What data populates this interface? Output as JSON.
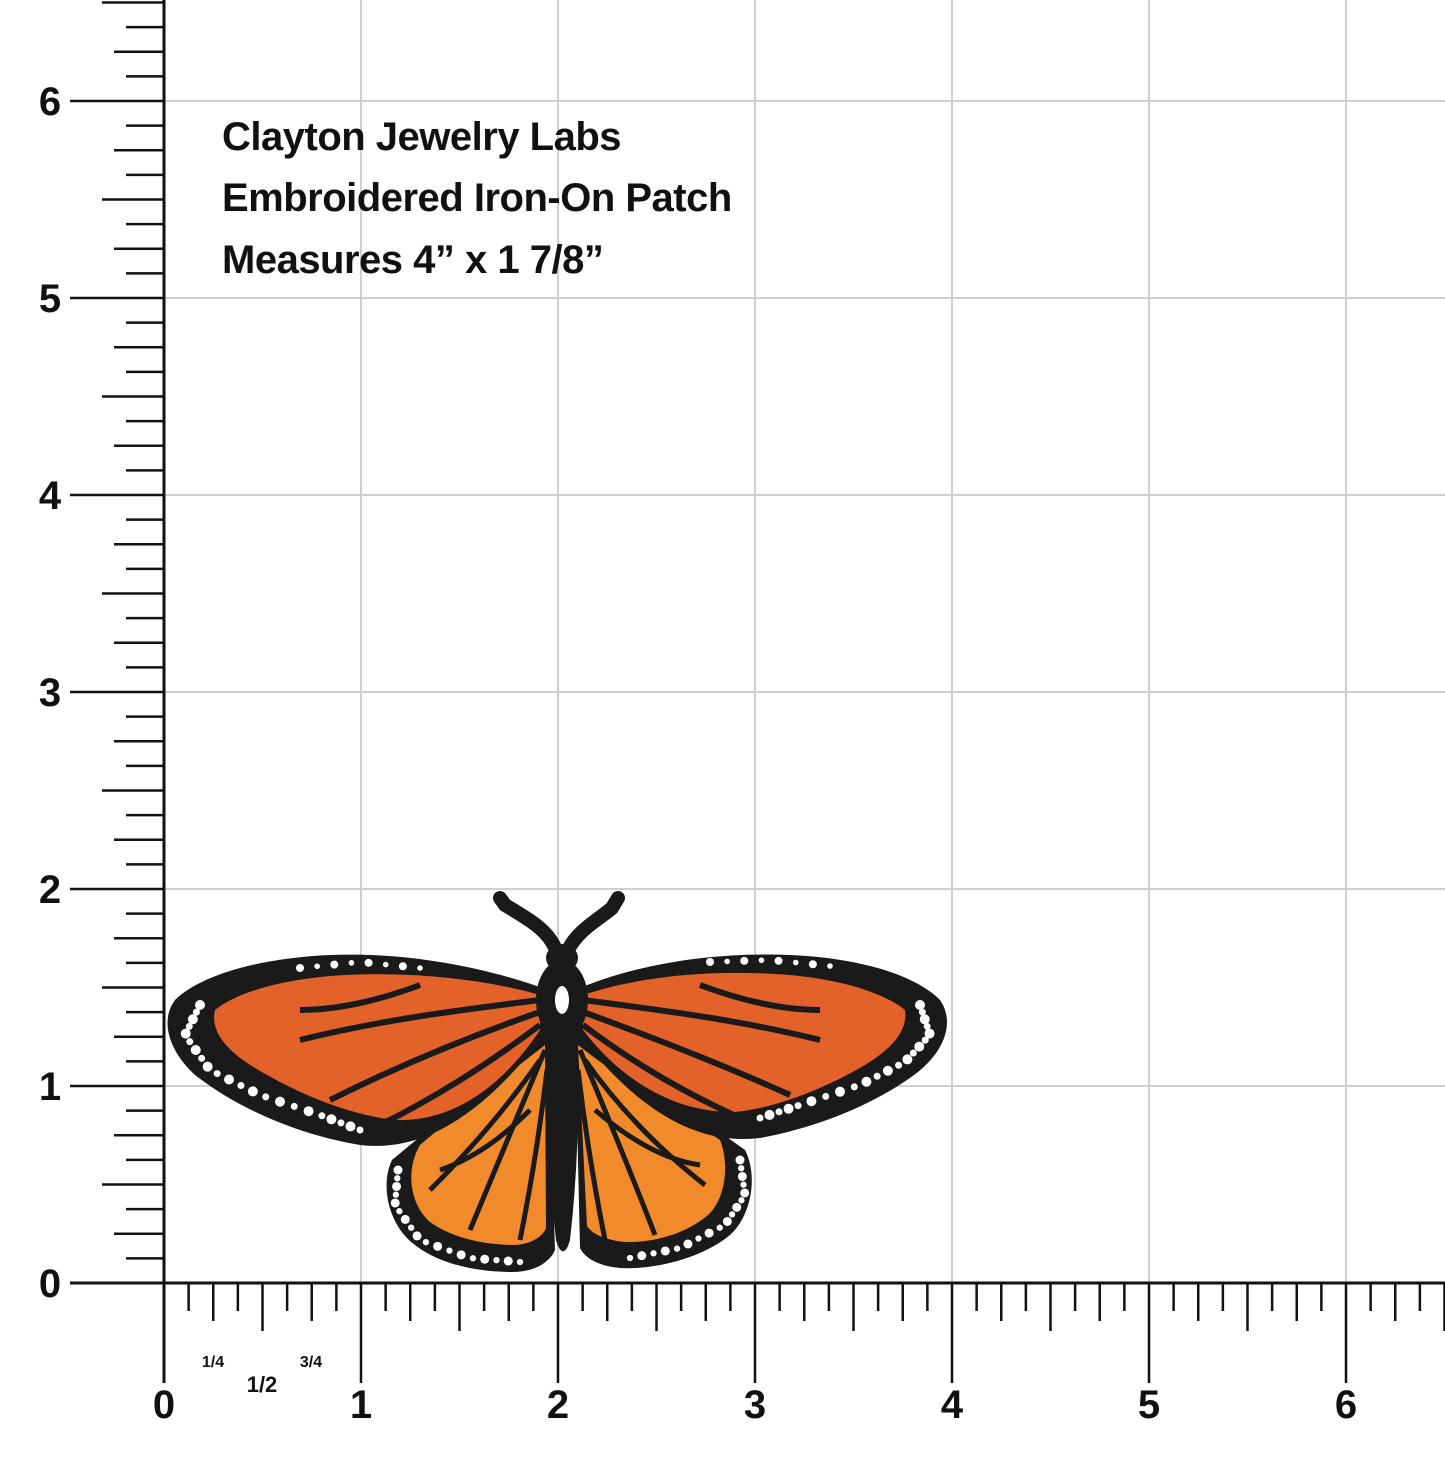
{
  "caption": {
    "line1": "Clayton Jewelry Labs",
    "line2": "Embroidered Iron-On Patch",
    "line3": "Measures 4” x 1 7/8”"
  },
  "ruler": {
    "unit": "inch",
    "x_labels": [
      "0",
      "1",
      "2",
      "3",
      "4",
      "5",
      "6"
    ],
    "y_labels": [
      "0",
      "1",
      "2",
      "3",
      "4",
      "5",
      "6"
    ],
    "fraction_labels": [
      "1/4",
      "1/2",
      "3/4"
    ],
    "subdivisions_per_inch": 8
  },
  "colors": {
    "grid": "#cfcfcf",
    "ruler": "#111111",
    "wing_black": "#1a1a1a",
    "forewing_orange": "#e2622a",
    "hindwing_orange": "#f08a2a",
    "spots": "#ffffff"
  },
  "patch": {
    "subject": "monarch-butterfly"
  }
}
